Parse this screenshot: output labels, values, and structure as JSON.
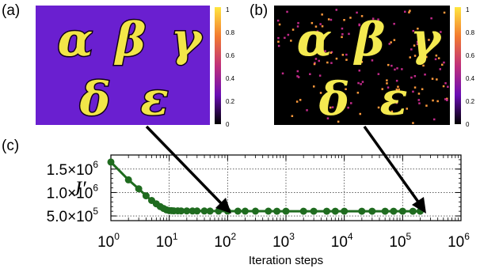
{
  "panels": {
    "a": "(a)",
    "b": "(b)",
    "c": "(c)"
  },
  "images": {
    "letters": [
      "α",
      "β",
      "γ",
      "δ",
      "ε"
    ],
    "panel_a_colors": {
      "background": "#6a1fd0",
      "glyph_fill": "#f2e648",
      "glyph_outline": "#12001a"
    },
    "panel_b_colors": {
      "background": "#000000",
      "glyph_fill": "#f4ea50",
      "speckle": "#ff9a3c"
    }
  },
  "colorbars": {
    "a": {
      "ticks": [
        "1",
        "0.8",
        "0.6",
        "0.4",
        "0.2",
        "0"
      ]
    },
    "b": {
      "ticks": [
        "1",
        "0.8",
        "0.6",
        "0.4",
        "0.2",
        "0"
      ]
    }
  },
  "chart_data": {
    "type": "line",
    "xscale": "log",
    "xlim": [
      1,
      1000000
    ],
    "ylim": [
      400000,
      1800000
    ],
    "xlabel": "Iteration steps",
    "ylabel": "J′",
    "grid": true,
    "marker_color": "#1f6b1f",
    "x_ticks": [
      {
        "base": "10",
        "exp": "0",
        "value": 1
      },
      {
        "base": "10",
        "exp": "1",
        "value": 10
      },
      {
        "base": "10",
        "exp": "2",
        "value": 100
      },
      {
        "base": "10",
        "exp": "3",
        "value": 1000
      },
      {
        "base": "10",
        "exp": "4",
        "value": 10000
      },
      {
        "base": "10",
        "exp": "5",
        "value": 100000
      },
      {
        "base": "10",
        "exp": "6",
        "value": 1000000
      }
    ],
    "y_ticks": [
      {
        "mant": "1.5×10",
        "exp": "6",
        "value": 1500000
      },
      {
        "mant": "1.0×10",
        "exp": "6",
        "value": 1000000
      },
      {
        "mant": "5.0×10",
        "exp": "5",
        "value": 500000
      }
    ],
    "series": [
      {
        "x": [
          1,
          2,
          3,
          4,
          5,
          6,
          7,
          8,
          9,
          10,
          11,
          12,
          14,
          16,
          20,
          25,
          30,
          40,
          50,
          70,
          100,
          150,
          200,
          300,
          500,
          700,
          1000,
          2000,
          3000,
          5000,
          7000,
          10000,
          20000,
          30000,
          50000,
          70000,
          100000,
          150000,
          200000
        ],
        "values": [
          1650000,
          1270000,
          1080000,
          930000,
          830000,
          760000,
          700000,
          660000,
          630000,
          615000,
          612000,
          610000,
          609000,
          608000,
          607000,
          606000,
          605000,
          605000,
          604000,
          604000,
          603000,
          603000,
          602000,
          602000,
          602000,
          601000,
          601000,
          601000,
          600000,
          600000,
          600000,
          600000,
          600000,
          600000,
          600000,
          600000,
          600000,
          600000,
          600000
        ]
      }
    ]
  }
}
